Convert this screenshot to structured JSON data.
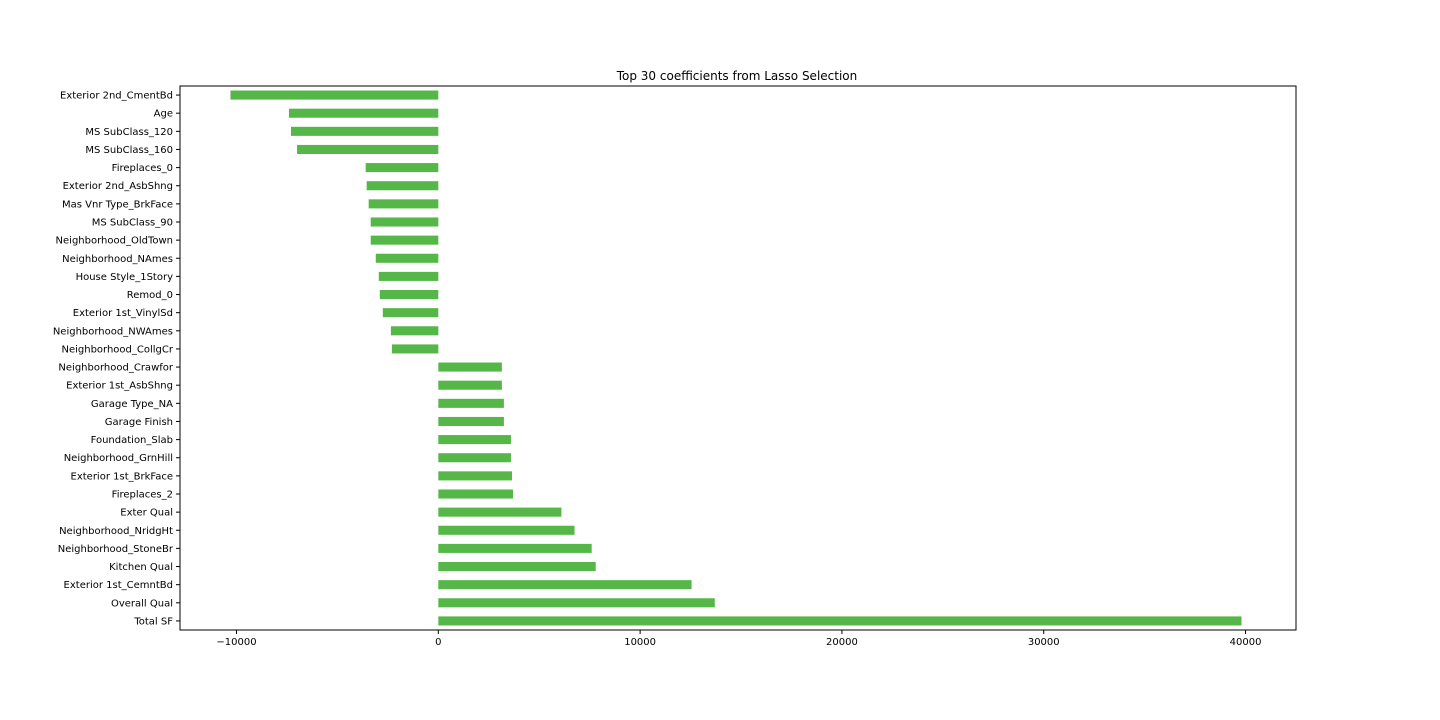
{
  "chart_data": {
    "type": "bar",
    "orientation": "horizontal",
    "title": "Top 30 coefficients from Lasso Selection",
    "xlabel": "",
    "ylabel": "",
    "xlim": [
      -12800,
      42500
    ],
    "xticks": [
      -10000,
      0,
      10000,
      20000,
      30000,
      40000
    ],
    "xtick_labels": [
      "−10000",
      "0",
      "10000",
      "20000",
      "30000",
      "40000"
    ],
    "grid": false,
    "legend": "none",
    "bar_color": "#55b748",
    "categories": [
      "Exterior 2nd_CmentBd",
      "Age",
      "MS SubClass_120",
      "MS SubClass_160",
      "Fireplaces_0",
      "Exterior 2nd_AsbShng",
      "Mas Vnr Type_BrkFace",
      "MS SubClass_90",
      "Neighborhood_OldTown",
      "Neighborhood_NAmes",
      "House Style_1Story",
      "Remod_0",
      "Exterior 1st_VinylSd",
      "Neighborhood_NWAmes",
      "Neighborhood_CollgCr",
      "Neighborhood_Crawfor",
      "Exterior 1st_AsbShng",
      "Garage Type_NA",
      "Garage Finish",
      "Foundation_Slab",
      "Neighborhood_GrnHill",
      "Exterior 1st_BrkFace",
      "Fireplaces_2",
      "Exter Qual",
      "Neighborhood_NridgHt",
      "Neighborhood_StoneBr",
      "Kitchen Qual",
      "Exterior 1st_CemntBd",
      "Overall Qual",
      "Total SF"
    ],
    "values": [
      -10300,
      -7400,
      -7300,
      -7000,
      -3600,
      -3550,
      -3450,
      -3350,
      -3350,
      -3100,
      -2950,
      -2900,
      -2750,
      -2350,
      -2300,
      3150,
      3150,
      3250,
      3250,
      3600,
      3600,
      3650,
      3700,
      6100,
      6750,
      7600,
      7800,
      12550,
      13700,
      39800
    ]
  }
}
